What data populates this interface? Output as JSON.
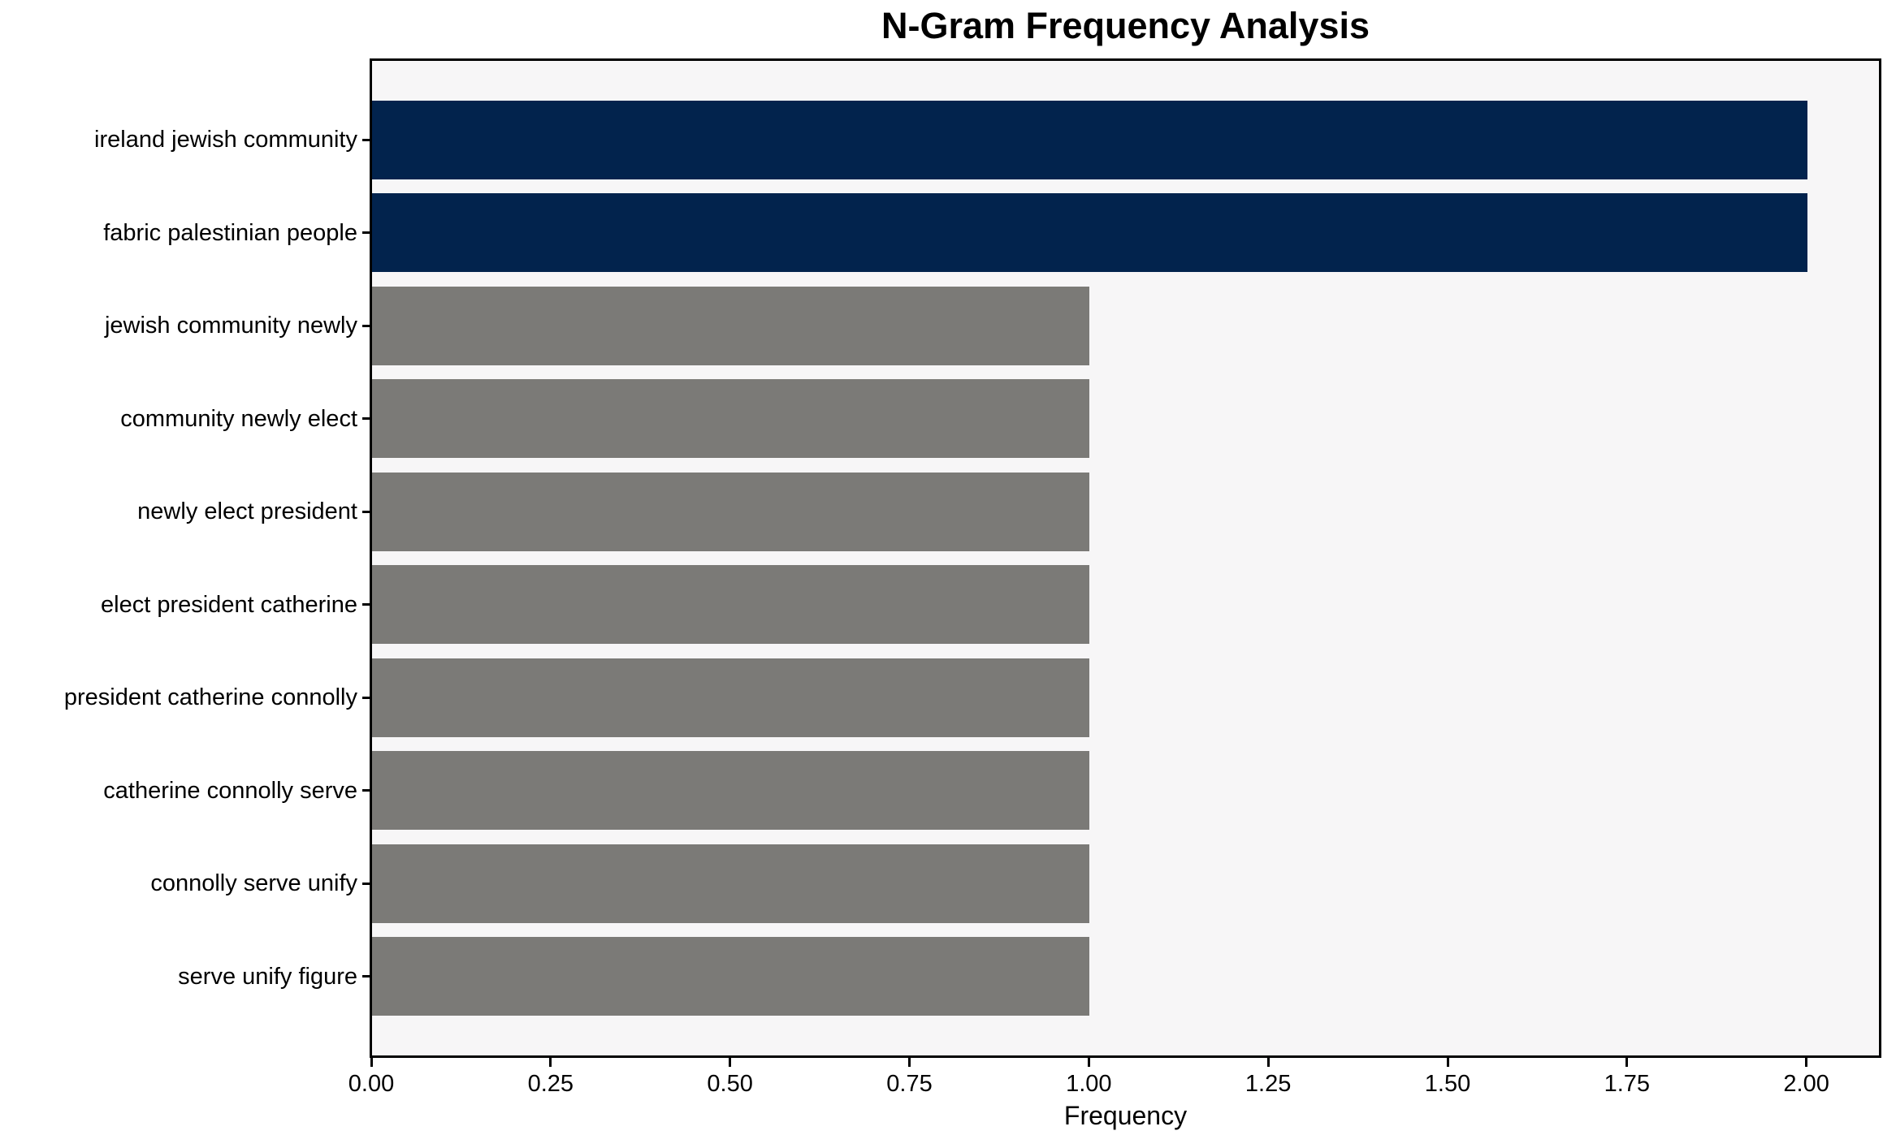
{
  "chart_data": {
    "type": "bar",
    "orientation": "horizontal",
    "title": "N-Gram Frequency Analysis",
    "xlabel": "Frequency",
    "ylabel": "",
    "categories": [
      "ireland jewish community",
      "fabric palestinian people",
      "jewish community newly",
      "community newly elect",
      "newly elect president",
      "elect president catherine",
      "president catherine connolly",
      "catherine connolly serve",
      "connolly serve unify",
      "serve unify figure"
    ],
    "values": [
      2,
      2,
      1,
      1,
      1,
      1,
      1,
      1,
      1,
      1
    ],
    "bar_colors": [
      "#02234D",
      "#02234D",
      "#7B7A77",
      "#7B7A77",
      "#7B7A77",
      "#7B7A77",
      "#7B7A77",
      "#7B7A77",
      "#7B7A77",
      "#7B7A77"
    ],
    "xlim": [
      0,
      2.1
    ],
    "xticks": [
      0,
      0.25,
      0.5,
      0.75,
      1,
      1.25,
      1.5,
      1.75,
      2
    ],
    "xtick_labels": [
      "0.00",
      "0.25",
      "0.50",
      "0.75",
      "1.00",
      "1.25",
      "1.50",
      "1.75",
      "2.00"
    ],
    "grid": false,
    "legend": null,
    "colors": {
      "highlight": "#02234D",
      "default_bar": "#7B7A77",
      "plot_background": "#F7F6F7",
      "figure_background": "#FFFFFF",
      "spine": "#000000",
      "text": "#000000"
    }
  }
}
